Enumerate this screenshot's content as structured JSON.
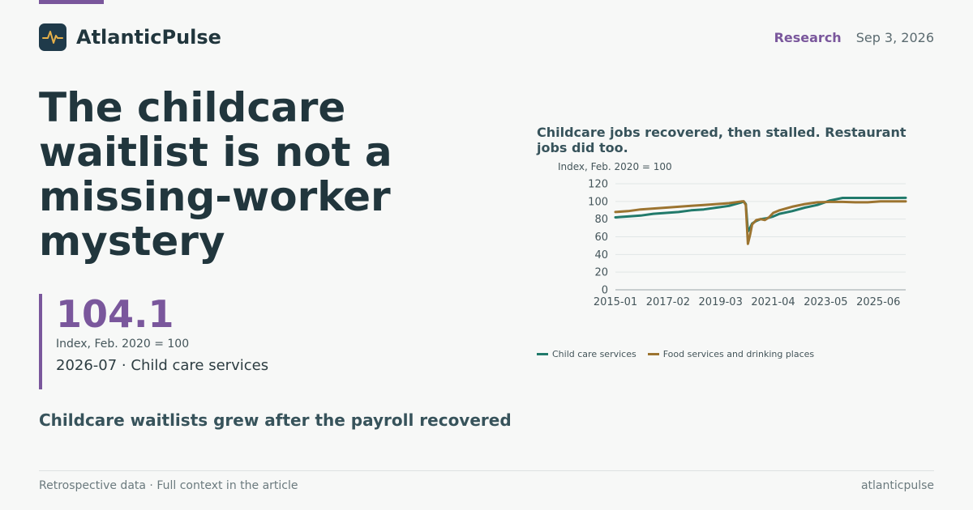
{
  "brand": {
    "name": "AtlanticPulse",
    "logo_icon": "pulse-icon"
  },
  "header": {
    "section": "Research",
    "date": "Sep 3, 2026"
  },
  "headline": "The childcare waitlist is not a missing-worker mystery",
  "stat": {
    "value": "104.1",
    "unit": "Index, Feb. 2020 = 100",
    "context": "2026-07 · Child care services"
  },
  "subhead": "Childcare waitlists grew after the payroll recovered",
  "footer": {
    "note": "Retrospective data · Full context in the article",
    "site": "atlanticpulse"
  },
  "colors": {
    "accent": "#7a579c",
    "childcare": "#217a6b",
    "food": "#9c7430",
    "text": "#21363d"
  },
  "chart_data": {
    "type": "line",
    "title": "Childcare jobs recovered, then stalled. Restaurant jobs did too.",
    "ylabel": "Index, Feb. 2020 = 100",
    "ylim": [
      0,
      120
    ],
    "yticks": [
      0,
      20,
      40,
      60,
      80,
      100,
      120
    ],
    "xlim": [
      "2015-01",
      "2026-07"
    ],
    "xticks": [
      "2015-01",
      "2017-02",
      "2019-03",
      "2021-04",
      "2023-05",
      "2025-06"
    ],
    "grid": true,
    "legend_position": "bottom-left",
    "series": [
      {
        "name": "Child care services",
        "color": "#217a6b",
        "points": [
          [
            "2015-01",
            82
          ],
          [
            "2015-07",
            83
          ],
          [
            "2016-01",
            84
          ],
          [
            "2016-07",
            86
          ],
          [
            "2017-01",
            87
          ],
          [
            "2017-07",
            88
          ],
          [
            "2018-01",
            90
          ],
          [
            "2018-07",
            91
          ],
          [
            "2019-01",
            93
          ],
          [
            "2019-07",
            95
          ],
          [
            "2020-01",
            99
          ],
          [
            "2020-02",
            100
          ],
          [
            "2020-03",
            97
          ],
          [
            "2020-04",
            66
          ],
          [
            "2020-05",
            70
          ],
          [
            "2020-06",
            75
          ],
          [
            "2020-08",
            78
          ],
          [
            "2020-10",
            80
          ],
          [
            "2021-01",
            81
          ],
          [
            "2021-04",
            83
          ],
          [
            "2021-07",
            86
          ],
          [
            "2022-01",
            89
          ],
          [
            "2022-07",
            93
          ],
          [
            "2023-01",
            96
          ],
          [
            "2023-07",
            101
          ],
          [
            "2024-01",
            104
          ],
          [
            "2024-07",
            104
          ],
          [
            "2025-01",
            104
          ],
          [
            "2025-07",
            104
          ],
          [
            "2026-01",
            104
          ],
          [
            "2026-07",
            104.1
          ]
        ]
      },
      {
        "name": "Food services and drinking places",
        "color": "#9c7430",
        "points": [
          [
            "2015-01",
            88
          ],
          [
            "2015-07",
            89
          ],
          [
            "2016-01",
            91
          ],
          [
            "2016-07",
            92
          ],
          [
            "2017-01",
            93
          ],
          [
            "2017-07",
            94
          ],
          [
            "2018-01",
            95
          ],
          [
            "2018-07",
            96
          ],
          [
            "2019-01",
            97
          ],
          [
            "2019-07",
            98
          ],
          [
            "2020-01",
            100
          ],
          [
            "2020-02",
            100
          ],
          [
            "2020-03",
            96
          ],
          [
            "2020-04",
            52
          ],
          [
            "2020-05",
            62
          ],
          [
            "2020-06",
            74
          ],
          [
            "2020-08",
            79
          ],
          [
            "2020-10",
            80
          ],
          [
            "2020-12",
            79
          ],
          [
            "2021-02",
            82
          ],
          [
            "2021-04",
            87
          ],
          [
            "2021-07",
            90
          ],
          [
            "2022-01",
            94
          ],
          [
            "2022-07",
            97
          ],
          [
            "2023-01",
            99
          ],
          [
            "2023-07",
            99.5
          ],
          [
            "2024-01",
            99.5
          ],
          [
            "2024-07",
            99
          ],
          [
            "2025-01",
            99
          ],
          [
            "2025-07",
            100
          ],
          [
            "2026-01",
            100
          ],
          [
            "2026-07",
            100
          ]
        ]
      }
    ]
  }
}
